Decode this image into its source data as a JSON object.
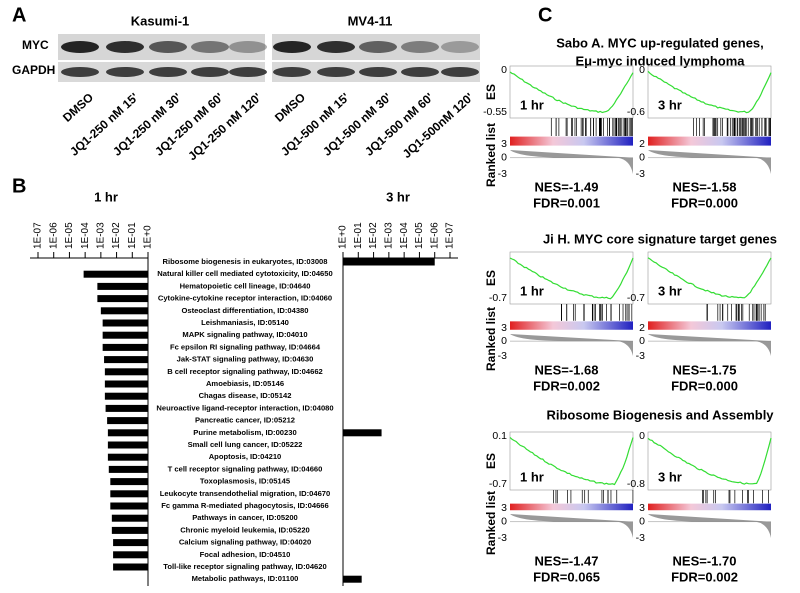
{
  "panel_a": {
    "label": "A",
    "cell_lines": [
      "Kasumi-1",
      "MV4-11"
    ],
    "proteins": [
      "MYC",
      "GAPDH"
    ],
    "lanes": [
      "DMSO",
      "JQ1-250 nM 15'",
      "JQ1-250 nM 30'",
      "JQ1-250 nM 60'",
      "JQ1-250 nM 120'",
      "DMSO",
      "JQ1-500 nM 15'",
      "JQ1-500 nM 30'",
      "JQ1-500 nM 60'",
      "JQ1-500nM 120'"
    ]
  },
  "chart_data": {
    "type": "bar",
    "label": "B",
    "orientation": "horizontal",
    "log_scale": true,
    "categories": [
      "Ribosome biogenesis in eukaryotes, ID:03008",
      "Natural killer cell mediated cytotoxicity, ID:04650",
      "Hematopoietic cell lineage, ID:04640",
      "Cytokine-cytokine receptor interaction, ID:04060",
      "Osteoclast differentiation, ID:04380",
      "Leishmaniasis, ID:05140",
      "MAPK signaling pathway, ID:04010",
      "Fc epsilon RI signaling pathway, ID:04664",
      "Jak-STAT signaling pathway, ID:04630",
      "B cell receptor signaling pathway, ID:04662",
      "Amoebiasis, ID:05146",
      "Chagas disease, ID:05142",
      "Neuroactive ligand-receptor interaction, ID:04080",
      "Pancreatic cancer, ID:05212",
      "Purine metabolism, ID:00230",
      "Small cell lung cancer, ID:05222",
      "Apoptosis, ID:04210",
      "T cell receptor signaling pathway, ID:04660",
      "Toxoplasmosis, ID:05145",
      "Leukocyte transendothelial migration, ID:04670",
      "Fc gamma R-mediated phagocytosis, ID:04666",
      "Pathways in cancer, ID:05200",
      "Chronic myeloid leukemia, ID:05220",
      "Calcium signaling pathway, ID:04020",
      "Focal adhesion, ID:04510",
      "Toll-like receptor signaling pathway, ID:04620",
      "Metabolic pathways, ID:01100"
    ],
    "series": [
      {
        "name": "1 hr",
        "color": "#000000",
        "values": [
          null,
          8e-05,
          0.0006,
          0.0006,
          0.001,
          0.0013,
          0.0013,
          0.0013,
          0.0016,
          0.0018,
          0.0018,
          0.0018,
          0.002,
          0.0025,
          0.0028,
          0.0028,
          0.0028,
          0.0032,
          0.004,
          0.004,
          0.004,
          0.005,
          0.005,
          0.006,
          0.006,
          0.006,
          null
        ]
      },
      {
        "name": "3 hr",
        "color": "#000000",
        "values": [
          1e-06,
          null,
          null,
          null,
          null,
          null,
          null,
          null,
          null,
          null,
          null,
          null,
          null,
          null,
          0.003,
          null,
          null,
          null,
          null,
          null,
          null,
          null,
          null,
          null,
          null,
          null,
          0.06
        ]
      }
    ],
    "xlim": [
      1e-07,
      1
    ],
    "xticks": [
      {
        "value": 1e-07,
        "label": "1E-07"
      },
      {
        "value": 1e-06,
        "label": "1E-06"
      },
      {
        "value": 1e-05,
        "label": "1E-05"
      },
      {
        "value": 0.0001,
        "label": "1E-04"
      },
      {
        "value": 0.001,
        "label": "1E-03"
      },
      {
        "value": 0.01,
        "label": "1E-02"
      },
      {
        "value": 0.1,
        "label": "1E-01"
      },
      {
        "value": 1,
        "label": "1E+0"
      }
    ]
  },
  "panel_c": {
    "label": "C",
    "es_label": "ES",
    "ranked_label": "Ranked list",
    "sets": [
      {
        "title": [
          "Sabo A. MYC up-regulated genes,",
          "Eμ-myc induced lymphoma"
        ],
        "plots": [
          {
            "time": "1 hr",
            "es_ticks": [
              0,
              -0.55
            ],
            "rank_ticks": [
              3,
              0,
              -3
            ],
            "nes": "NES=-1.49",
            "fdr": "FDR=0.001"
          },
          {
            "time": "3 hr",
            "es_ticks": [
              0,
              -0.6
            ],
            "rank_ticks": [
              2,
              0,
              -3
            ],
            "nes": "NES=-1.58",
            "fdr": "FDR=0.000"
          }
        ]
      },
      {
        "title": [
          "Ji H. MYC core signature target genes"
        ],
        "plots": [
          {
            "time": "1 hr",
            "es_ticks": [
              -0.7
            ],
            "rank_ticks": [
              3,
              0,
              -3
            ],
            "nes": "NES=-1.68",
            "fdr": "FDR=0.002"
          },
          {
            "time": "3 hr",
            "es_ticks": [
              -0.7
            ],
            "rank_ticks": [
              2,
              0,
              -3
            ],
            "nes": "NES=-1.75",
            "fdr": "FDR=0.000"
          }
        ]
      },
      {
        "title": [
          "Ribosome Biogenesis and Assembly"
        ],
        "plots": [
          {
            "time": "1 hr",
            "es_ticks": [
              0.1,
              -0.7
            ],
            "rank_ticks": [
              3,
              0,
              -3
            ],
            "nes": "NES=-1.47",
            "fdr": "FDR=0.065"
          },
          {
            "time": "3 hr",
            "es_ticks": [
              0,
              -0.8
            ],
            "rank_ticks": [
              3,
              0,
              -3
            ],
            "nes": "NES=-1.70",
            "fdr": "FDR=0.002"
          }
        ]
      }
    ]
  }
}
